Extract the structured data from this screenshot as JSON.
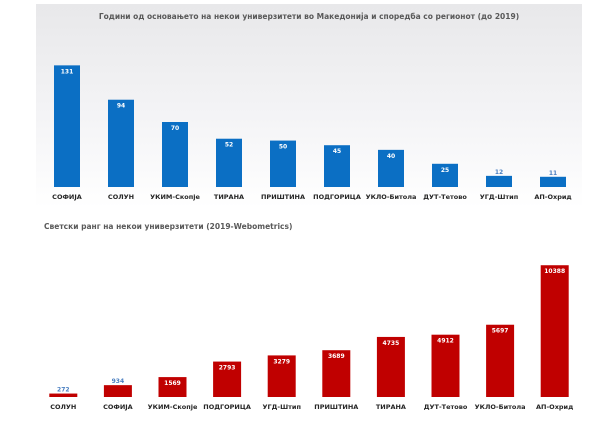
{
  "chart_data": [
    {
      "type": "bar",
      "title": "Години од основањето на некои универзитети во Македонија и споредба со регионот (до 2019)",
      "categories": [
        "СОФИЈА",
        "СОЛУН",
        "УКИМ-Скопје",
        "ТИРАНА",
        "ПРИШТИНА",
        "ПОДГОРИЦА",
        "УКЛО-Битола",
        "ДУТ-Тетово",
        "УГД-Штип",
        "АП-Охрид"
      ],
      "values": [
        131,
        94,
        70,
        52,
        50,
        45,
        40,
        25,
        12,
        11
      ],
      "color": "#0b6fc4",
      "ylim": [
        0,
        140
      ],
      "grid": false,
      "legend": "none"
    },
    {
      "type": "bar",
      "title": "Светски ранг на некои универзитети (2019-Webometrics)",
      "categories": [
        "СОЛУН",
        "СОФИЈА",
        "УКИМ-Скопје",
        "ПОДГОРИЦА",
        "УГД-Штип",
        "ПРИШТИНА",
        "ТИРАНА",
        "ДУТ-Тетово",
        "УКЛО-Битола",
        "АП-Охрид"
      ],
      "values": [
        272,
        934,
        1569,
        2793,
        3279,
        3689,
        4735,
        4912,
        5697,
        10388
      ],
      "color": "#c00000",
      "ylim": [
        0,
        10800
      ],
      "grid": false,
      "legend": "none"
    }
  ]
}
